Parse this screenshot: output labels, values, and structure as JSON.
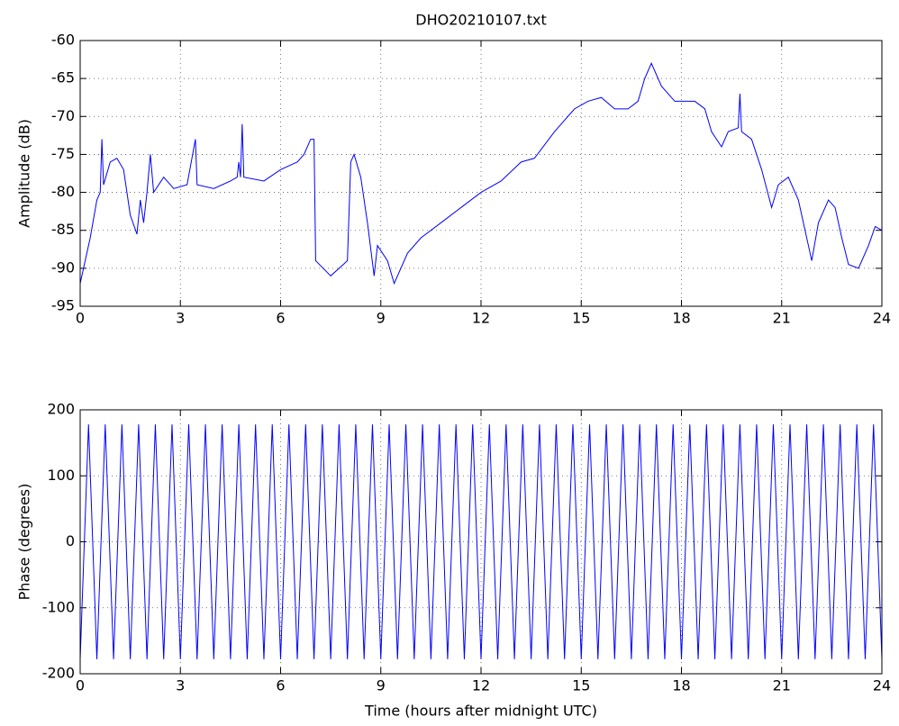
{
  "chart_data": [
    {
      "type": "line",
      "title": "DHO20210107.txt",
      "y_label": "Amplitude (dB)",
      "color": "#0000ff",
      "grid": true,
      "xlim": [
        0,
        24
      ],
      "xticks": [
        0,
        3,
        6,
        9,
        12,
        15,
        18,
        21,
        24
      ],
      "ylim": [
        -95,
        -60
      ],
      "yticks": [
        -95,
        -90,
        -85,
        -80,
        -75,
        -70,
        -65,
        -60
      ],
      "x": [
        0,
        0.1,
        0.3,
        0.5,
        0.6,
        0.65,
        0.7,
        0.9,
        1.1,
        1.3,
        1.5,
        1.7,
        1.8,
        1.9,
        2.0,
        2.1,
        2.2,
        2.5,
        2.8,
        3.2,
        3.45,
        3.5,
        4,
        4.5,
        4.7,
        4.75,
        4.8,
        4.85,
        4.9,
        5.5,
        6,
        6.5,
        6.7,
        6.9,
        7.0,
        7.05,
        7.5,
        8,
        8.1,
        8.2,
        8.4,
        8.6,
        8.8,
        8.9,
        9.2,
        9.4,
        9.8,
        10.2,
        10.8,
        11.4,
        12,
        12.6,
        13.2,
        13.6,
        14.2,
        14.8,
        15.2,
        15.6,
        16,
        16.4,
        16.7,
        16.9,
        17.1,
        17.4,
        17.8,
        18.4,
        18.7,
        18.9,
        19.2,
        19.4,
        19.7,
        19.75,
        19.8,
        20.1,
        20.4,
        20.7,
        20.9,
        21.2,
        21.5,
        21.8,
        21.9,
        22.1,
        22.4,
        22.6,
        22.8,
        23,
        23.3,
        23.6,
        23.8,
        24
      ],
      "values": [
        -92,
        -90,
        -86,
        -81,
        -80,
        -73,
        -79,
        -76,
        -75.5,
        -77,
        -83,
        -85.5,
        -81,
        -84,
        -80,
        -75,
        -80,
        -78,
        -79.5,
        -79,
        -73,
        -79,
        -79.5,
        -78.5,
        -78,
        -76,
        -78,
        -71,
        -78,
        -78.5,
        -77,
        -76,
        -75,
        -73,
        -73,
        -89,
        -91,
        -89,
        -76,
        -75,
        -78,
        -84,
        -91,
        -87,
        -89,
        -92,
        -88,
        -86,
        -84,
        -82,
        -80,
        -78.5,
        -76,
        -75.5,
        -72,
        -69,
        -68,
        -67.5,
        -69,
        -69,
        -68,
        -65,
        -63,
        -66,
        -68,
        -68,
        -69,
        -72,
        -74,
        -72,
        -71.5,
        -67,
        -72,
        -73,
        -77,
        -82,
        -79,
        -78,
        -81,
        -87,
        -89,
        -84,
        -81,
        -82,
        -86,
        -89.5,
        -90,
        -87,
        -84.5,
        -85
      ]
    },
    {
      "type": "line",
      "y_label": "Phase (degrees)",
      "x_label": "Time (hours after midnight UTC)",
      "color": "#0000ff",
      "grid": true,
      "xlim": [
        0,
        24
      ],
      "xticks": [
        0,
        3,
        6,
        9,
        12,
        15,
        18,
        21,
        24
      ],
      "ylim": [
        -200,
        200
      ],
      "yticks": [
        -200,
        -100,
        0,
        100,
        200
      ],
      "x": [
        0,
        0.25,
        0.5,
        0.75,
        1,
        1.25,
        1.5,
        1.75,
        2,
        2.25,
        2.5,
        2.75,
        3,
        3.25,
        3.5,
        3.75,
        4,
        4.25,
        4.5,
        4.75,
        5,
        5.25,
        5.5,
        5.75,
        6,
        6.25,
        6.5,
        6.75,
        7,
        7.25,
        7.5,
        7.75,
        8,
        8.25,
        8.5,
        8.75,
        9,
        9.25,
        9.5,
        9.75,
        10,
        10.25,
        10.5,
        10.75,
        11,
        11.25,
        11.5,
        11.75,
        12,
        12.25,
        12.5,
        12.75,
        13,
        13.25,
        13.5,
        13.75,
        14,
        14.25,
        14.5,
        14.75,
        15,
        15.25,
        15.5,
        15.75,
        16,
        16.25,
        16.5,
        16.75,
        17,
        17.25,
        17.5,
        17.75,
        18,
        18.25,
        18.5,
        18.75,
        19,
        19.25,
        19.5,
        19.75,
        20,
        20.25,
        20.5,
        20.75,
        21,
        21.25,
        21.5,
        21.75,
        22,
        22.25,
        22.5,
        22.75,
        23,
        23.25,
        23.5,
        23.75,
        24
      ],
      "values": [
        -178,
        178,
        -178,
        178,
        -178,
        178,
        -178,
        178,
        -178,
        178,
        -178,
        178,
        -178,
        178,
        -178,
        178,
        -178,
        178,
        -178,
        178,
        -178,
        178,
        -178,
        178,
        -178,
        178,
        -178,
        178,
        -178,
        178,
        -178,
        178,
        -178,
        178,
        -178,
        178,
        -178,
        178,
        -178,
        178,
        -178,
        178,
        -178,
        178,
        -178,
        178,
        -178,
        178,
        -178,
        178,
        -178,
        178,
        -178,
        178,
        -178,
        178,
        -178,
        178,
        -178,
        178,
        -178,
        178,
        -178,
        178,
        -178,
        178,
        -178,
        178,
        -178,
        178,
        -178,
        178,
        -178,
        178,
        -178,
        178,
        -178,
        178,
        -178,
        178,
        -178,
        178,
        -178,
        178,
        -178,
        178,
        -178,
        178,
        -178,
        178,
        -178,
        178,
        -178,
        178,
        -178,
        178,
        -178
      ]
    }
  ]
}
